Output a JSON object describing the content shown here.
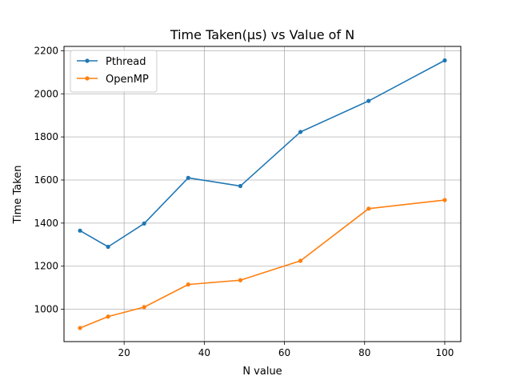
{
  "chart_data": {
    "type": "line",
    "title": "Time Taken(μs) vs Value of N",
    "xlabel": "N value",
    "ylabel": "Time Taken",
    "xlim": [
      5,
      104
    ],
    "ylim": [
      850,
      2220
    ],
    "xticks": [
      20,
      40,
      60,
      80,
      100
    ],
    "yticks": [
      1000,
      1200,
      1400,
      1600,
      1800,
      2000,
      2200
    ],
    "grid": true,
    "legend_position": "top-left",
    "x": [
      9,
      16,
      25,
      36,
      49,
      64,
      81,
      100
    ],
    "series": [
      {
        "name": "Pthread",
        "color": "#1f77b4",
        "marker": "dot",
        "values": [
          1365,
          1290,
          1398,
          1610,
          1572,
          1823,
          1967,
          2155
        ]
      },
      {
        "name": "OpenMP",
        "color": "#ff7f0e",
        "marker": "dot",
        "values": [
          913,
          966,
          1010,
          1115,
          1135,
          1225,
          1467,
          1507
        ]
      }
    ]
  }
}
